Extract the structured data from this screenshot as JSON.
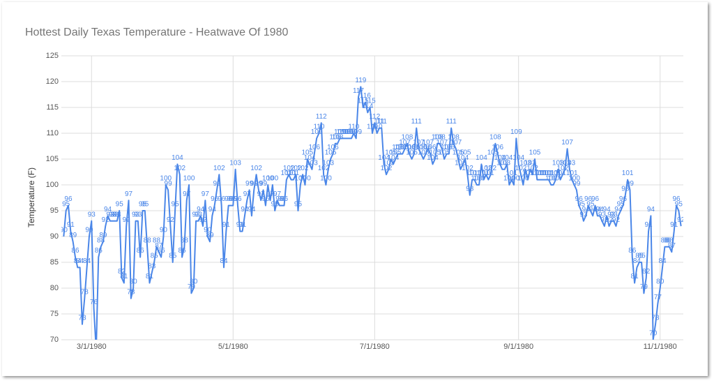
{
  "chart_data": {
    "type": "line",
    "title": "Hottest Daily Texas Temperature  - Heatwave Of 1980",
    "y_label": "Temperature (F)",
    "ylim": [
      70,
      125
    ],
    "yticks": [
      70,
      75,
      80,
      85,
      90,
      95,
      100,
      105,
      110,
      115,
      120,
      125
    ],
    "xlim": [
      "2/17/1980",
      "11/11/1980"
    ],
    "xticks": [
      "3/1/1980",
      "5/1/1980",
      "7/1/1980",
      "9/1/1980",
      "11/1/1980"
    ],
    "grid": true,
    "x": [
      "2/18/1980",
      "2/19/1980",
      "2/20/1980",
      "2/21/1980",
      "2/22/1980",
      "2/23/1980",
      "2/24/1980",
      "2/25/1980",
      "2/26/1980",
      "2/27/1980",
      "2/28/1980",
      "2/29/1980",
      "3/1/1980",
      "3/2/1980",
      "3/3/1980",
      "3/4/1980",
      "3/5/1980",
      "3/6/1980",
      "3/7/1980",
      "3/8/1980",
      "3/9/1980",
      "3/10/1980",
      "3/11/1980",
      "3/12/1980",
      "3/13/1980",
      "3/14/1980",
      "3/15/1980",
      "3/16/1980",
      "3/17/1980",
      "3/18/1980",
      "3/19/1980",
      "3/20/1980",
      "3/21/1980",
      "3/22/1980",
      "3/23/1980",
      "3/24/1980",
      "3/25/1980",
      "3/26/1980",
      "3/27/1980",
      "3/28/1980",
      "3/29/1980",
      "3/30/1980",
      "3/31/1980",
      "4/1/1980",
      "4/2/1980",
      "4/3/1980",
      "4/4/1980",
      "4/5/1980",
      "4/6/1980",
      "4/7/1980",
      "4/8/1980",
      "4/9/1980",
      "4/10/1980",
      "4/11/1980",
      "4/12/1980",
      "4/13/1980",
      "4/14/1980",
      "4/15/1980",
      "4/16/1980",
      "4/17/1980",
      "4/18/1980",
      "4/19/1980",
      "4/20/1980",
      "4/21/1980",
      "4/22/1980",
      "4/23/1980",
      "4/24/1980",
      "4/25/1980",
      "4/26/1980",
      "4/27/1980",
      "4/28/1980",
      "4/29/1980",
      "4/30/1980",
      "5/1/1980",
      "5/2/1980",
      "5/3/1980",
      "5/4/1980",
      "5/5/1980",
      "5/6/1980",
      "5/7/1980",
      "5/8/1980",
      "5/9/1980",
      "5/10/1980",
      "5/11/1980",
      "5/12/1980",
      "5/13/1980",
      "5/14/1980",
      "5/15/1980",
      "5/16/1980",
      "5/17/1980",
      "5/18/1980",
      "5/19/1980",
      "5/20/1980",
      "5/21/1980",
      "5/22/1980",
      "5/23/1980",
      "5/24/1980",
      "5/25/1980",
      "5/26/1980",
      "5/27/1980",
      "5/28/1980",
      "5/29/1980",
      "5/30/1980",
      "5/31/1980",
      "6/1/1980",
      "6/2/1980",
      "6/3/1980",
      "6/4/1980",
      "6/5/1980",
      "6/6/1980",
      "6/7/1980",
      "6/8/1980",
      "6/9/1980",
      "6/10/1980",
      "6/11/1980",
      "6/12/1980",
      "6/13/1980",
      "6/14/1980",
      "6/15/1980",
      "6/16/1980",
      "6/17/1980",
      "6/18/1980",
      "6/19/1980",
      "6/20/1980",
      "6/21/1980",
      "6/22/1980",
      "6/23/1980",
      "6/24/1980",
      "6/25/1980",
      "6/26/1980",
      "6/27/1980",
      "6/28/1980",
      "6/29/1980",
      "6/30/1980",
      "7/1/1980",
      "7/2/1980",
      "7/3/1980",
      "7/4/1980",
      "7/5/1980",
      "7/6/1980",
      "7/7/1980",
      "7/8/1980",
      "7/9/1980",
      "7/10/1980",
      "7/11/1980",
      "7/12/1980",
      "7/13/1980",
      "7/14/1980",
      "7/15/1980",
      "7/16/1980",
      "7/17/1980",
      "7/18/1980",
      "7/19/1980",
      "7/20/1980",
      "7/21/1980",
      "7/22/1980",
      "7/23/1980",
      "7/24/1980",
      "7/25/1980",
      "7/26/1980",
      "7/27/1980",
      "7/28/1980",
      "7/29/1980",
      "7/30/1980",
      "7/31/1980",
      "8/1/1980",
      "8/2/1980",
      "8/3/1980",
      "8/4/1980",
      "8/5/1980",
      "8/6/1980",
      "8/7/1980",
      "8/8/1980",
      "8/9/1980",
      "8/10/1980",
      "8/11/1980",
      "8/12/1980",
      "8/13/1980",
      "8/14/1980",
      "8/15/1980",
      "8/16/1980",
      "8/17/1980",
      "8/18/1980",
      "8/19/1980",
      "8/20/1980",
      "8/21/1980",
      "8/22/1980",
      "8/23/1980",
      "8/24/1980",
      "8/25/1980",
      "8/26/1980",
      "8/27/1980",
      "8/28/1980",
      "8/29/1980",
      "8/30/1980",
      "8/31/1980",
      "9/1/1980",
      "9/2/1980",
      "9/3/1980",
      "9/4/1980",
      "9/5/1980",
      "9/6/1980",
      "9/7/1980",
      "9/8/1980",
      "9/9/1980",
      "9/10/1980",
      "9/11/1980",
      "9/12/1980",
      "9/13/1980",
      "9/14/1980",
      "9/15/1980",
      "9/16/1980",
      "9/17/1980",
      "9/18/1980",
      "9/19/1980",
      "9/20/1980",
      "9/21/1980",
      "9/22/1980",
      "9/23/1980",
      "9/24/1980",
      "9/25/1980",
      "9/26/1980",
      "9/27/1980",
      "9/28/1980",
      "9/29/1980",
      "9/30/1980",
      "10/1/1980",
      "10/2/1980",
      "10/3/1980",
      "10/4/1980",
      "10/5/1980",
      "10/6/1980",
      "10/7/1980",
      "10/8/1980",
      "10/9/1980",
      "10/10/1980",
      "10/11/1980",
      "10/12/1980",
      "10/13/1980",
      "10/14/1980",
      "10/15/1980",
      "10/16/1980",
      "10/17/1980",
      "10/18/1980",
      "10/19/1980",
      "10/20/1980",
      "10/21/1980",
      "10/22/1980",
      "10/23/1980",
      "10/24/1980",
      "10/25/1980",
      "10/26/1980",
      "10/27/1980",
      "10/28/1980",
      "10/29/1980",
      "10/30/1980",
      "10/31/1980",
      "11/1/1980",
      "11/2/1980",
      "11/3/1980",
      "11/4/1980",
      "11/5/1980",
      "11/6/1980",
      "11/7/1980",
      "11/8/1980",
      "11/9/1980",
      "11/10/1980"
    ],
    "color": "#4a86e8",
    "values": [
      90,
      95,
      96,
      91,
      89,
      86,
      84,
      84,
      73,
      78,
      84,
      90,
      93,
      76,
      68,
      86,
      88,
      89,
      92,
      94,
      93,
      93,
      93,
      93,
      95,
      82,
      81,
      92,
      97,
      78,
      80,
      93,
      93,
      86,
      95,
      95,
      88,
      81,
      83,
      85,
      88,
      87,
      86,
      90,
      100,
      99,
      92,
      85,
      95,
      104,
      102,
      86,
      88,
      97,
      100,
      79,
      80,
      93,
      93,
      94,
      92,
      97,
      90,
      89,
      94,
      96,
      99,
      102,
      96,
      84,
      91,
      96,
      96,
      96,
      103,
      96,
      91,
      91,
      94,
      97,
      99,
      94,
      99,
      102,
      99,
      97,
      99,
      96,
      100,
      97,
      100,
      95,
      97,
      96,
      96,
      96,
      101,
      102,
      101,
      101,
      102,
      95,
      100,
      102,
      100,
      105,
      104,
      103,
      106,
      109,
      110,
      112,
      102,
      100,
      103,
      105,
      106,
      108,
      108,
      109,
      109,
      109,
      109,
      109,
      109,
      110,
      109,
      117,
      119,
      115,
      116,
      114,
      115,
      110,
      112,
      110,
      111,
      111,
      104,
      102,
      103,
      105,
      104,
      105,
      106,
      106,
      106,
      107,
      108,
      106,
      105,
      106,
      111,
      107,
      106,
      105,
      106,
      107,
      106,
      104,
      105,
      108,
      108,
      107,
      105,
      106,
      106,
      111,
      108,
      107,
      105,
      103,
      104,
      105,
      102,
      98,
      101,
      101,
      100,
      100,
      104,
      101,
      102,
      101,
      102,
      105,
      108,
      106,
      104,
      103,
      103,
      104,
      100,
      101,
      100,
      109,
      104,
      102,
      100,
      103,
      101,
      103,
      102,
      105,
      101,
      101,
      101,
      101,
      101,
      101,
      100,
      100,
      101,
      103,
      101,
      102,
      103,
      107,
      103,
      101,
      100,
      99,
      96,
      95,
      93,
      94,
      96,
      95,
      94,
      96,
      94,
      94,
      93,
      92,
      94,
      92,
      93,
      93,
      92,
      94,
      95,
      96,
      98,
      101,
      99,
      86,
      81,
      84,
      85,
      85,
      79,
      82,
      91,
      94,
      70,
      73,
      77,
      80,
      84,
      88,
      88,
      88,
      87,
      91,
      96,
      95,
      92
    ]
  }
}
